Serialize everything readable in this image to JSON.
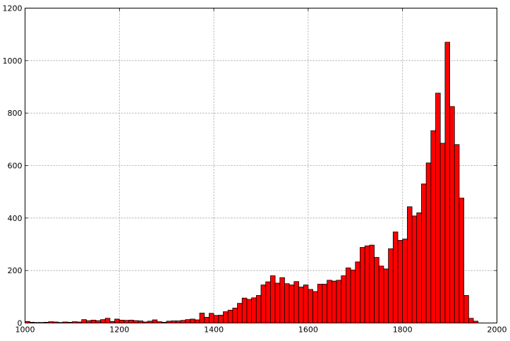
{
  "chart_data": {
    "type": "bar",
    "title": "",
    "xlabel": "",
    "ylabel": "",
    "xlim": [
      1000,
      2000
    ],
    "ylim": [
      0,
      1200
    ],
    "grid": true,
    "bar_color": "#ff0000",
    "edge_color": "#000000",
    "bin_start": 1000,
    "bin_width": 10,
    "xticks": [
      "1000",
      "1200",
      "1400",
      "1600",
      "1800",
      "2000"
    ],
    "yticks": [
      "0",
      "200",
      "400",
      "600",
      "800",
      "1000",
      "1200"
    ],
    "values": [
      6,
      3,
      2,
      2,
      3,
      5,
      4,
      2,
      4,
      3,
      5,
      4,
      13,
      9,
      11,
      9,
      13,
      18,
      6,
      15,
      11,
      10,
      11,
      9,
      8,
      4,
      7,
      12,
      5,
      3,
      7,
      8,
      8,
      10,
      13,
      15,
      12,
      38,
      22,
      37,
      29,
      30,
      43,
      49,
      57,
      75,
      95,
      90,
      96,
      105,
      145,
      157,
      180,
      152,
      173,
      150,
      145,
      158,
      137,
      145,
      128,
      120,
      148,
      148,
      163,
      160,
      163,
      180,
      210,
      202,
      233,
      288,
      294,
      297,
      250,
      217,
      206,
      283,
      347,
      315,
      320,
      443,
      408,
      420,
      530,
      610,
      733,
      876,
      685,
      1070,
      825,
      680,
      476,
      105,
      18,
      7,
      0,
      0,
      0,
      0
    ]
  }
}
